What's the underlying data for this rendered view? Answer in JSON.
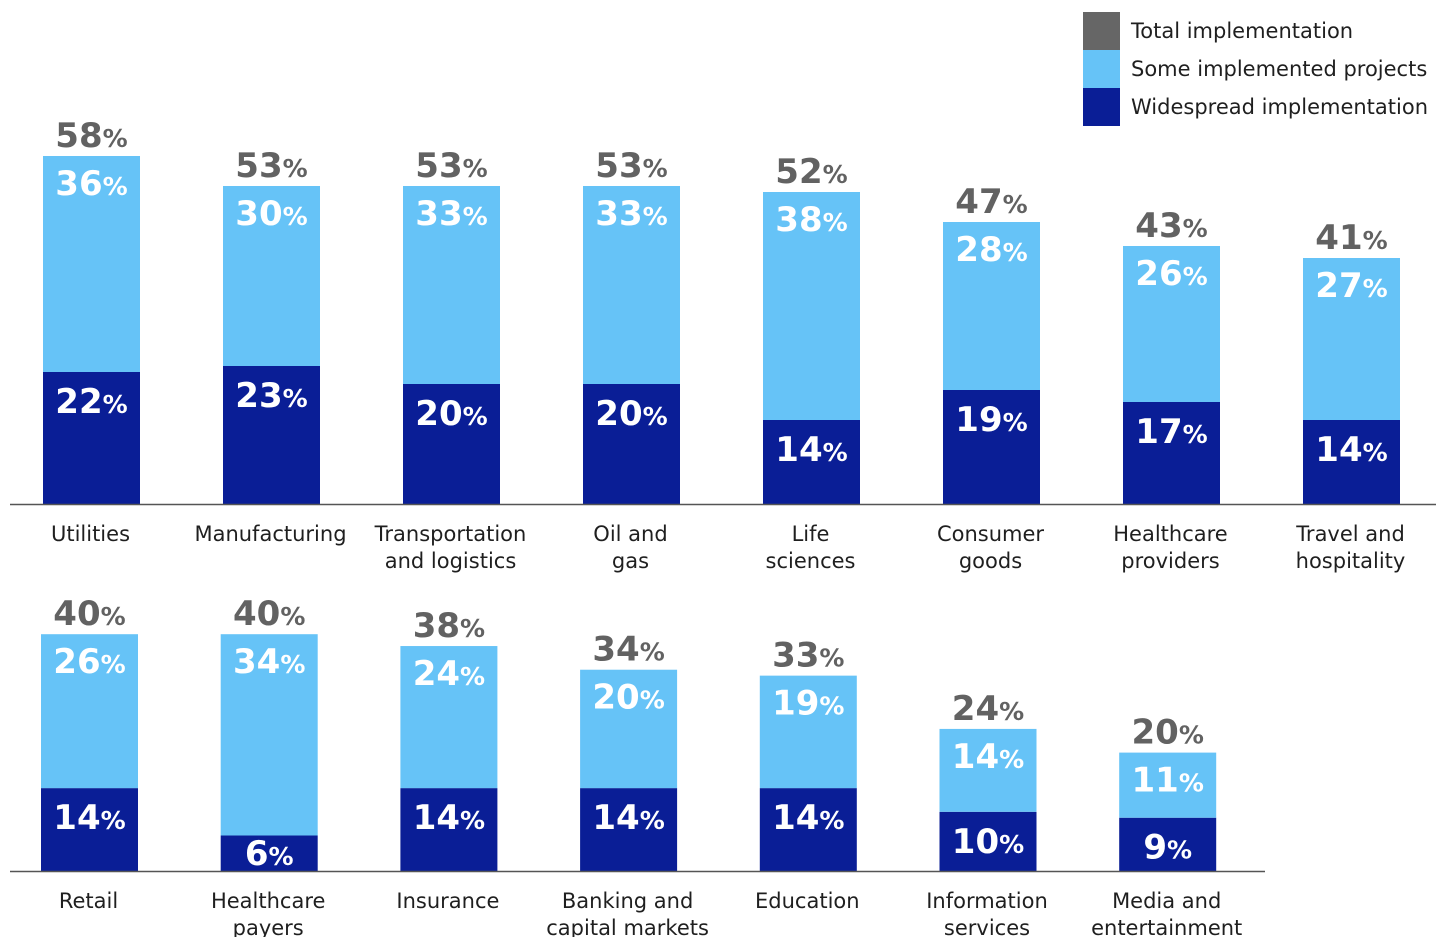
{
  "colors": {
    "total": "#666666",
    "some": "#66c3f7",
    "widespread": "#0a1e96",
    "axis": "#555555"
  },
  "legend": [
    {
      "key": "total",
      "label": "Total implementation"
    },
    {
      "key": "some",
      "label": "Some implemented projects"
    },
    {
      "key": "widespread",
      "label": "Widespread implementation"
    }
  ],
  "chart_data": [
    {
      "type": "bar",
      "stacked": true,
      "categories": [
        [
          "Utilities"
        ],
        [
          "Manufacturing"
        ],
        [
          "Transportation",
          "and logistics"
        ],
        [
          "Oil and",
          "gas"
        ],
        [
          "Life",
          "sciences"
        ],
        [
          "Consumer",
          "goods"
        ],
        [
          "Healthcare",
          "providers"
        ],
        [
          "Travel and",
          "hospitality"
        ]
      ],
      "series": [
        {
          "name": "Widespread implementation",
          "values": [
            22,
            23,
            20,
            20,
            14,
            19,
            17,
            14
          ]
        },
        {
          "name": "Some implemented projects",
          "values": [
            36,
            30,
            33,
            33,
            38,
            28,
            26,
            27
          ]
        }
      ],
      "totals": [
        58,
        53,
        53,
        53,
        52,
        47,
        43,
        41
      ],
      "unit": "%"
    },
    {
      "type": "bar",
      "stacked": true,
      "categories": [
        [
          "Retail"
        ],
        [
          "Healthcare",
          "payers"
        ],
        [
          "Insurance"
        ],
        [
          "Banking and",
          "capital markets"
        ],
        [
          "Education"
        ],
        [
          "Information",
          "services"
        ],
        [
          "Media and",
          "entertainment"
        ]
      ],
      "series": [
        {
          "name": "Widespread implementation",
          "values": [
            14,
            6,
            14,
            14,
            14,
            10,
            9
          ]
        },
        {
          "name": "Some implemented projects",
          "values": [
            26,
            34,
            24,
            20,
            19,
            14,
            11
          ]
        }
      ],
      "totals": [
        40,
        40,
        38,
        34,
        33,
        24,
        20
      ],
      "unit": "%"
    }
  ]
}
